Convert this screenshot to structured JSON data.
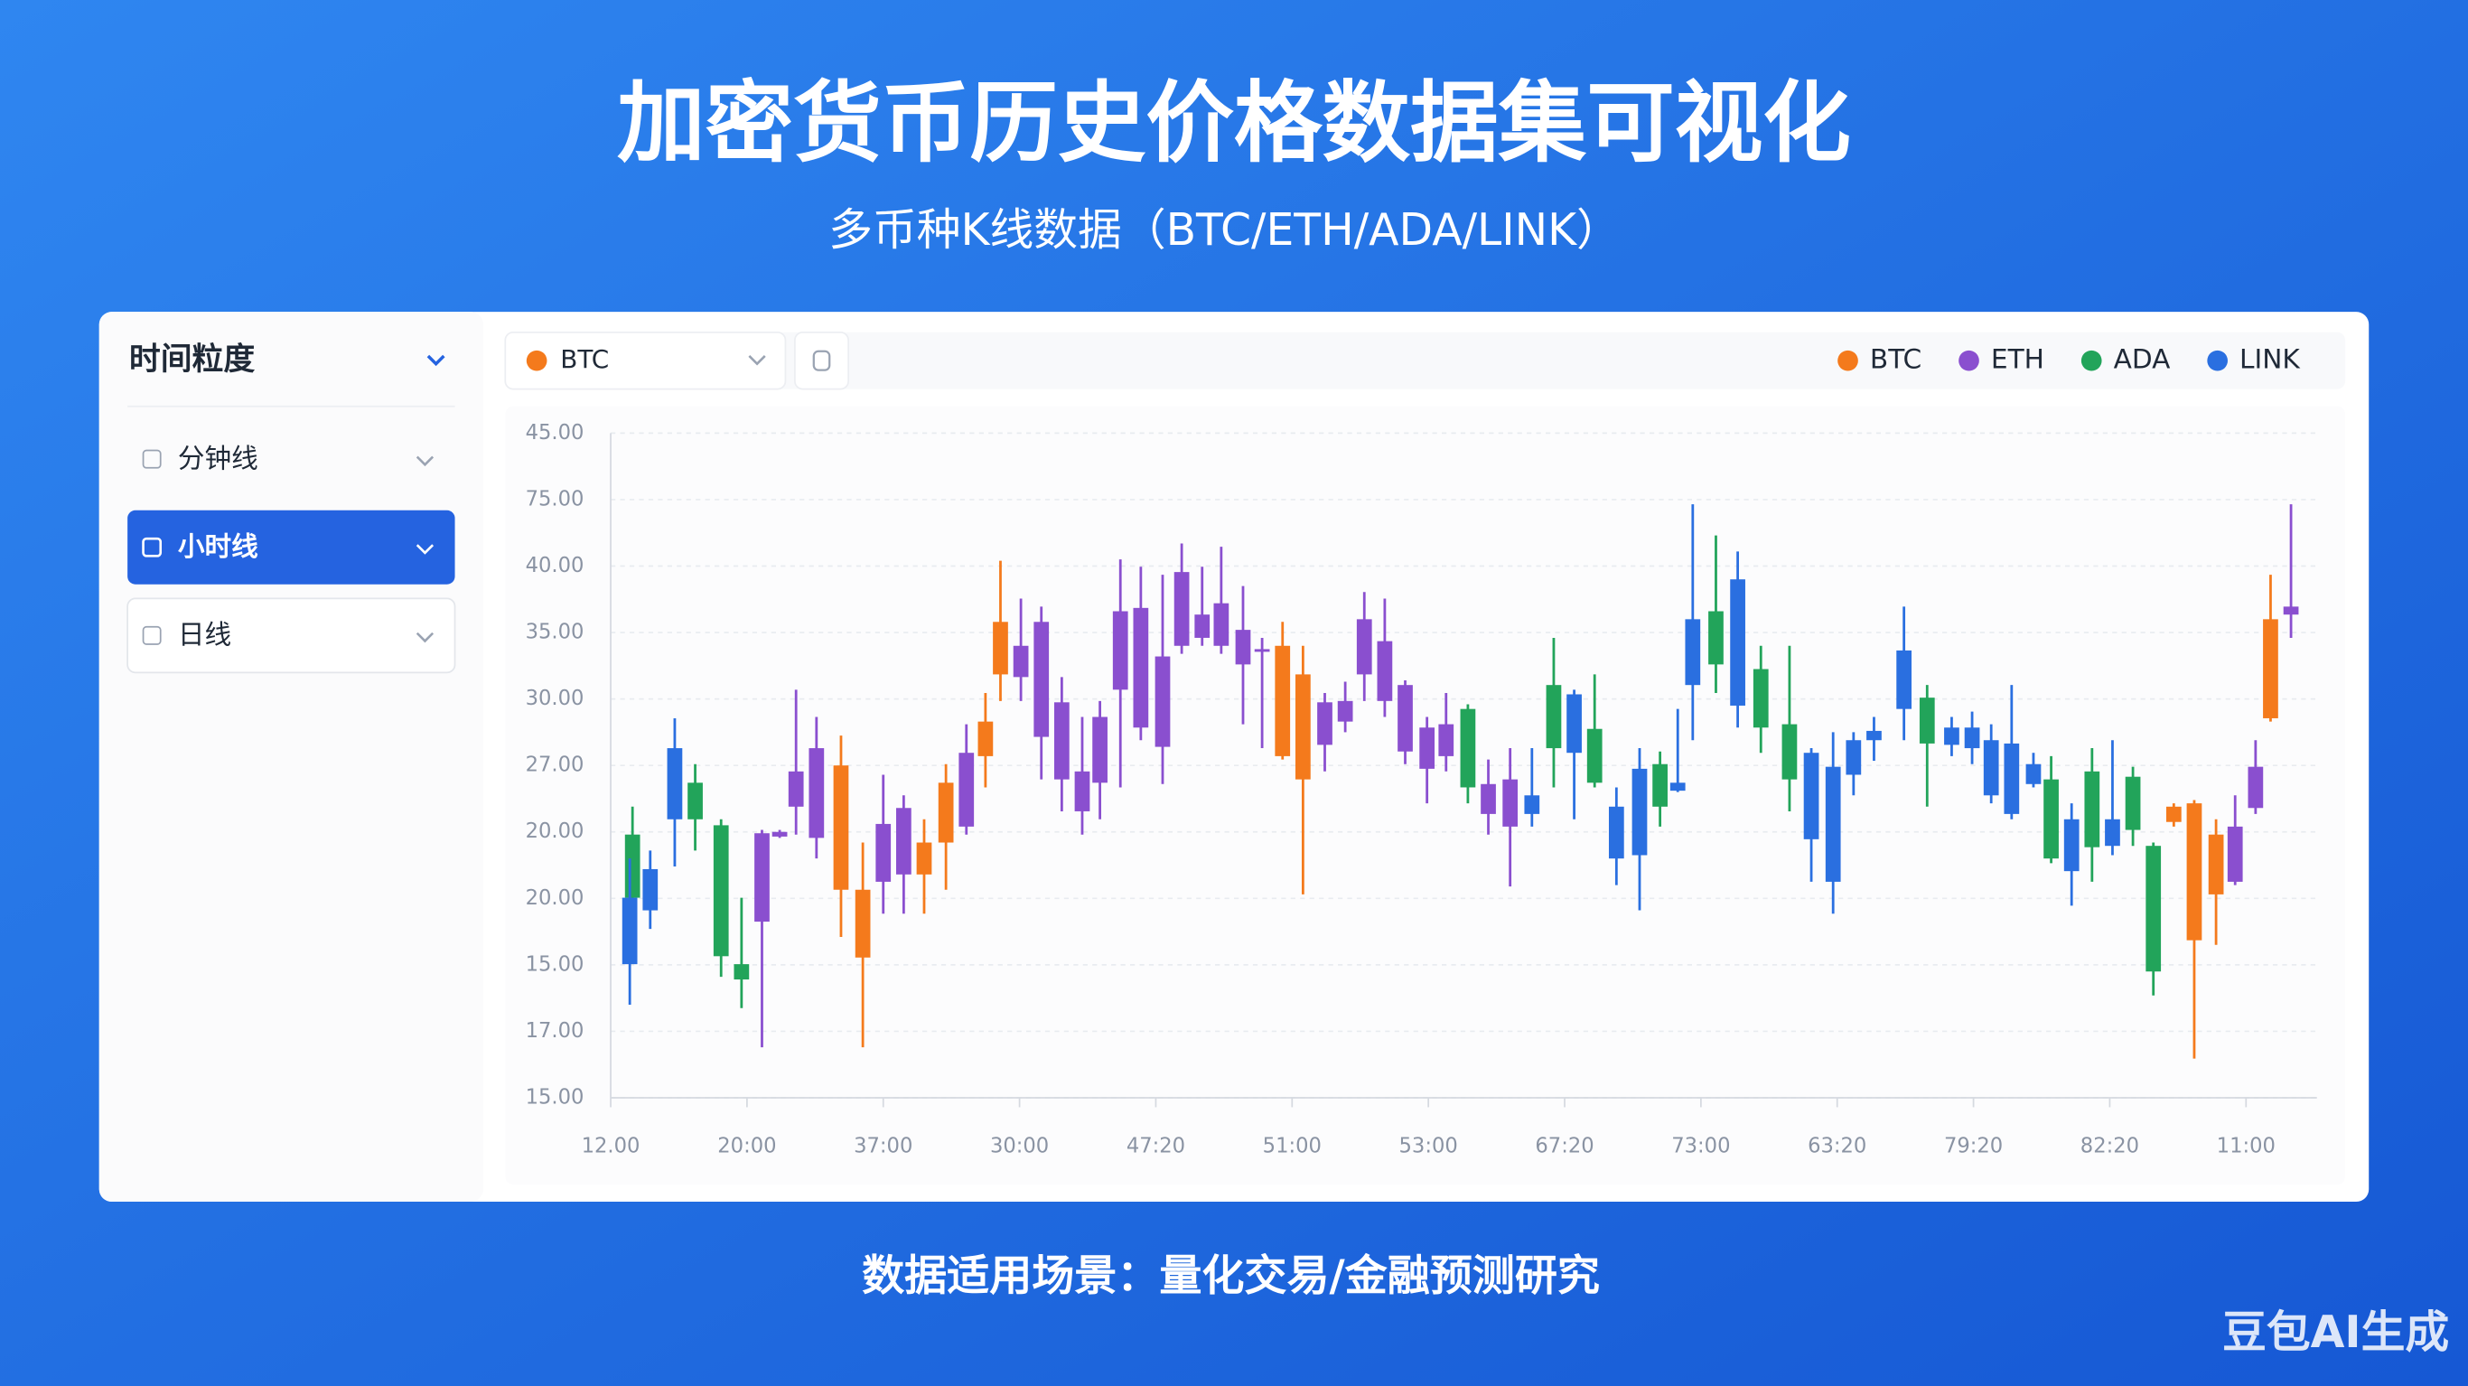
{
  "header": {
    "title": "加密货币历史价格数据集可视化",
    "subtitle": "多币种K线数据（BTC/ETH/ADA/LINK）"
  },
  "sidebar": {
    "title": "时间粒度",
    "options": [
      "分钟线",
      "小时线",
      "日线"
    ]
  },
  "selector": {
    "value": "BTC"
  },
  "footer": "数据适用场景：量化交易/金融预测研究",
  "watermark": "豆包AI生成",
  "chart_data": {
    "type": "candlestick",
    "grid": true,
    "xlim": [
      0,
      12.52
    ],
    "xticks": [
      {
        "value": 0,
        "label": "12.00"
      },
      {
        "value": 1,
        "label": "20:00"
      },
      {
        "value": 2,
        "label": "37:00"
      },
      {
        "value": 3,
        "label": "30:00"
      },
      {
        "value": 4,
        "label": "47:20"
      },
      {
        "value": 5,
        "label": "51:00"
      },
      {
        "value": 6,
        "label": "53:00"
      },
      {
        "value": 7,
        "label": "67:20"
      },
      {
        "value": 8,
        "label": "73:00"
      },
      {
        "value": 9,
        "label": "63:20"
      },
      {
        "value": 10,
        "label": "79:20"
      },
      {
        "value": 11,
        "label": "82:20"
      },
      {
        "value": 12,
        "label": "11:00"
      }
    ],
    "ylim": [
      0,
      10
    ],
    "yticks": [
      {
        "value": 0,
        "label": "15.00"
      },
      {
        "value": 1,
        "label": "17.00"
      },
      {
        "value": 2,
        "label": "15.00"
      },
      {
        "value": 3,
        "label": "20.00"
      },
      {
        "value": 4,
        "label": "20.00"
      },
      {
        "value": 5,
        "label": "27.00"
      },
      {
        "value": 6,
        "label": "30.00"
      },
      {
        "value": 7,
        "label": "35.00"
      },
      {
        "value": 8,
        "label": "40.00"
      },
      {
        "value": 9,
        "label": "75.00"
      },
      {
        "value": 10,
        "label": "45.00"
      }
    ],
    "series": [
      {
        "name": "BTC",
        "color": "#f47a1c",
        "x": [
          1.69,
          1.85,
          2.3,
          2.46,
          2.75,
          2.86,
          4.93,
          5.08,
          11.47,
          11.62,
          11.78,
          12.18
        ],
        "high": [
          5.45,
          3.84,
          4.19,
          5.02,
          6.09,
          8.08,
          7.16,
          6.8,
          4.43,
          4.48,
          4.19,
          7.87
        ],
        "close": [
          5.0,
          3.13,
          3.84,
          4.74,
          5.66,
          7.16,
          6.8,
          6.37,
          4.38,
          4.43,
          3.96,
          7.2
        ],
        "open": [
          3.13,
          2.11,
          3.36,
          3.84,
          5.14,
          6.37,
          5.14,
          4.79,
          4.15,
          2.37,
          3.06,
          5.71
        ],
        "low": [
          2.42,
          0.76,
          2.77,
          3.13,
          4.67,
          5.97,
          5.09,
          3.06,
          4.08,
          0.59,
          2.3,
          5.66
        ]
      },
      {
        "name": "ETH",
        "color": "#8a4fcf",
        "x": [
          1.11,
          1.24,
          1.36,
          1.51,
          2.0,
          2.15,
          2.61,
          3.01,
          3.16,
          3.31,
          3.46,
          3.59,
          3.74,
          3.89,
          4.05,
          4.19,
          4.34,
          4.48,
          4.64,
          4.78,
          5.24,
          5.39,
          5.53,
          5.68,
          5.83,
          5.99,
          6.13,
          6.44,
          6.6,
          11.92,
          12.07,
          12.33
        ],
        "high": [
          4.03,
          4.03,
          6.14,
          5.73,
          4.86,
          4.55,
          5.62,
          7.51,
          7.39,
          6.33,
          5.73,
          5.97,
          8.1,
          7.99,
          7.87,
          8.34,
          7.99,
          8.29,
          7.7,
          6.92,
          6.09,
          6.26,
          7.61,
          7.51,
          6.28,
          5.73,
          6.09,
          5.09,
          5.26,
          4.55,
          5.38,
          8.93
        ],
        "close": [
          3.98,
          4.0,
          4.91,
          5.26,
          4.12,
          4.36,
          5.19,
          6.8,
          7.16,
          5.95,
          4.91,
          5.73,
          7.32,
          7.37,
          6.64,
          7.91,
          7.27,
          7.44,
          7.04,
          6.75,
          5.95,
          5.97,
          7.2,
          6.87,
          6.21,
          5.57,
          5.62,
          4.72,
          4.79,
          4.08,
          4.98,
          7.39
        ],
        "open": [
          2.65,
          3.93,
          4.38,
          3.91,
          3.25,
          3.36,
          4.08,
          6.33,
          5.43,
          4.79,
          4.31,
          4.74,
          6.14,
          5.57,
          5.28,
          6.8,
          6.92,
          6.8,
          6.52,
          6.71,
          5.31,
          5.66,
          6.37,
          5.97,
          5.21,
          4.95,
          5.14,
          4.27,
          4.08,
          3.25,
          4.36,
          7.27
        ],
        "low": [
          0.76,
          3.91,
          3.96,
          3.6,
          2.77,
          2.77,
          3.96,
          5.97,
          4.79,
          4.31,
          3.96,
          4.19,
          4.67,
          5.38,
          4.72,
          6.68,
          6.8,
          6.68,
          5.62,
          5.26,
          4.91,
          5.5,
          5.97,
          5.73,
          5.02,
          4.43,
          4.91,
          3.96,
          3.18,
          3.2,
          4.27,
          6.92
        ]
      },
      {
        "name": "ADA",
        "color": "#22a45a",
        "x": [
          0.16,
          0.62,
          0.81,
          0.96,
          6.29,
          6.92,
          7.22,
          7.7,
          8.11,
          8.44,
          8.65,
          9.66,
          10.57,
          10.87,
          11.17,
          11.32
        ],
        "high": [
          4.38,
          5.02,
          4.19,
          3.01,
          5.92,
          6.92,
          6.37,
          5.21,
          8.46,
          6.8,
          6.8,
          6.21,
          5.14,
          5.26,
          4.98,
          3.84
        ],
        "close": [
          3.96,
          4.74,
          4.1,
          2.01,
          5.85,
          6.21,
          5.55,
          5.02,
          7.32,
          6.45,
          5.62,
          6.02,
          4.79,
          4.91,
          4.83,
          3.79
        ],
        "open": [
          3.01,
          4.19,
          2.13,
          1.78,
          4.67,
          5.26,
          4.74,
          4.38,
          6.52,
          5.57,
          4.79,
          5.33,
          3.6,
          3.77,
          4.03,
          1.9
        ],
        "low": [
          2.3,
          3.72,
          1.82,
          1.35,
          4.43,
          4.67,
          4.67,
          4.08,
          6.09,
          5.19,
          4.31,
          4.38,
          3.53,
          3.25,
          3.79,
          1.54
        ]
      },
      {
        "name": "LINK",
        "color": "#2a6fe0",
        "x": [
          0.14,
          0.29,
          0.47,
          6.76,
          7.07,
          7.38,
          7.55,
          7.83,
          7.94,
          8.27,
          8.81,
          8.97,
          9.12,
          9.27,
          9.49,
          9.84,
          9.99,
          10.13,
          10.28,
          10.44,
          10.72,
          11.02
        ],
        "high": [
          3.6,
          3.72,
          5.71,
          5.26,
          6.14,
          4.67,
          5.26,
          5.85,
          8.93,
          8.22,
          5.26,
          5.5,
          5.5,
          5.73,
          7.39,
          5.73,
          5.81,
          5.62,
          6.21,
          5.19,
          4.43,
          5.38
        ],
        "close": [
          3.01,
          3.44,
          5.26,
          4.55,
          6.07,
          4.38,
          4.95,
          4.74,
          7.2,
          7.8,
          5.19,
          4.98,
          5.38,
          5.52,
          6.73,
          5.57,
          5.57,
          5.38,
          5.33,
          5.02,
          4.19,
          4.19
        ],
        "open": [
          2.01,
          2.82,
          4.19,
          4.27,
          5.19,
          3.6,
          3.65,
          4.62,
          6.21,
          5.9,
          3.89,
          3.25,
          4.86,
          5.38,
          5.85,
          5.31,
          5.26,
          4.55,
          4.27,
          4.72,
          3.41,
          3.79
        ],
        "low": [
          1.4,
          2.54,
          3.48,
          4.08,
          4.19,
          3.2,
          2.82,
          4.6,
          5.38,
          5.57,
          3.25,
          2.77,
          4.55,
          5.07,
          5.38,
          5.14,
          5.02,
          4.43,
          4.19,
          4.67,
          2.89,
          3.65
        ]
      }
    ]
  }
}
